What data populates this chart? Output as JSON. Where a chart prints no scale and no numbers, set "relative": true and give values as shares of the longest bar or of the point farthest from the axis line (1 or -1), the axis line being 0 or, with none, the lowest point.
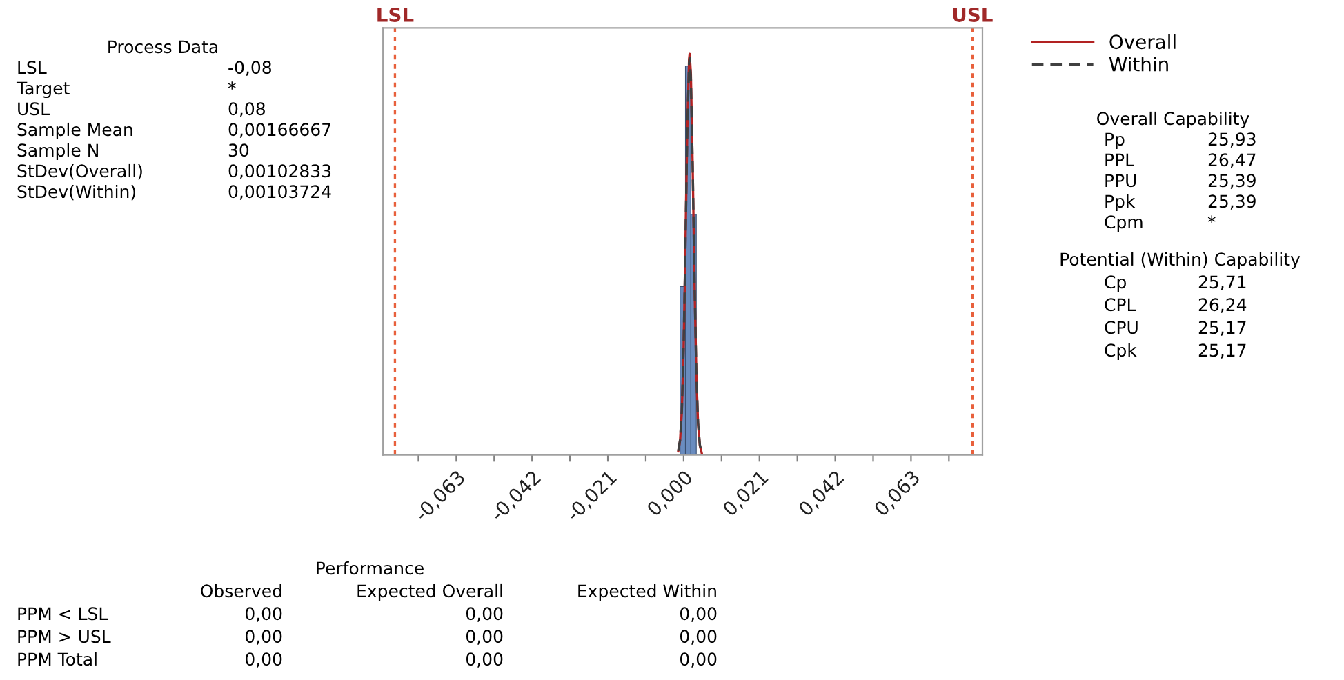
{
  "chart_data": {
    "type": "histogram",
    "relative": true,
    "bins": [
      -0.001,
      0.0005,
      0.002,
      0.0035
    ],
    "values": [
      0.42,
      0.97,
      0.6
    ],
    "color": "#6a8cbf",
    "series": [
      {
        "name": "Overall",
        "type": "line",
        "color": "#b22222",
        "line_style": "solid",
        "x": [
          -0.0015,
          -0.001,
          -0.0005,
          0,
          0.0005,
          0.001,
          0.0015,
          0.00167,
          0.002,
          0.0025,
          0.003,
          0.0035,
          0.004,
          0.0045,
          0.005
        ],
        "values": [
          0.009,
          0.035,
          0.108,
          0.269,
          0.527,
          0.81,
          0.987,
          1,
          0.95,
          0.72,
          0.435,
          0.205,
          0.076,
          0.023,
          0.005
        ]
      },
      {
        "name": "Within",
        "type": "line",
        "color": "#404040",
        "line_style": "dashed",
        "x": [
          -0.0015,
          -0.001,
          -0.0005,
          0,
          0.0005,
          0.001,
          0.0015,
          0.00167,
          0.002,
          0.0025,
          0.003,
          0.0035,
          0.004,
          0.0045,
          0.005
        ],
        "values": [
          0.01,
          0.037,
          0.111,
          0.273,
          0.527,
          0.805,
          0.978,
          0.99,
          0.94,
          0.72,
          0.44,
          0.21,
          0.08,
          0.025,
          0.006
        ]
      }
    ],
    "xlim": [
      -0.0833,
      0.0828
    ],
    "xticks": [
      {
        "value": -0.0735,
        "label": null
      },
      {
        "value": -0.063,
        "label": "-0,063"
      },
      {
        "value": -0.0525,
        "label": null
      },
      {
        "value": -0.042,
        "label": "-0,042"
      },
      {
        "value": -0.0315,
        "label": null
      },
      {
        "value": -0.021,
        "label": "-0,021"
      },
      {
        "value": -0.0105,
        "label": null
      },
      {
        "value": 0,
        "label": "0,000"
      },
      {
        "value": 0.0105,
        "label": null
      },
      {
        "value": 0.021,
        "label": "0,021"
      },
      {
        "value": 0.0315,
        "label": null
      },
      {
        "value": 0.042,
        "label": "0,042"
      },
      {
        "value": 0.0525,
        "label": null
      },
      {
        "value": 0.063,
        "label": "0,063"
      },
      {
        "value": 0.0735,
        "label": null
      }
    ],
    "ref_lines": [
      {
        "axis": "x",
        "value": -0.08,
        "label": "LSL",
        "color": "#e8603c",
        "line_style": "dotted"
      },
      {
        "axis": "x",
        "value": 0.08,
        "label": "USL",
        "color": "#e8603c",
        "line_style": "dotted"
      }
    ],
    "legend": "top right",
    "grid": false,
    "annotations": [
      "Process Data",
      "LSL\t-0,08",
      "Target\t*",
      "USL\t0,08",
      "Sample Mean\t0,00166667",
      "Sample N\t30",
      "StDev(Overall)\t0,00102833",
      "StDev(Within)\t0,00103724",
      "Overall Capability",
      "Pp\t25,93",
      "PPL\t26,47",
      "PPU\t25,39",
      "Ppk\t25,39",
      "Cpm\t*",
      "Potential (Within) Capability",
      "Cp\t25,71",
      "CPL\t26,24",
      "CPU\t25,17",
      "Cpk\t25,17",
      "Performance",
      "\tObserved\tExpected Overall\tExpected Within",
      "PPM < LSL\t0,00\t0,00\t0,00",
      "PPM > USL\t0,00\t0,00\t0,00",
      "PPM Total\t0,00\t0,00\t0,00"
    ]
  }
}
